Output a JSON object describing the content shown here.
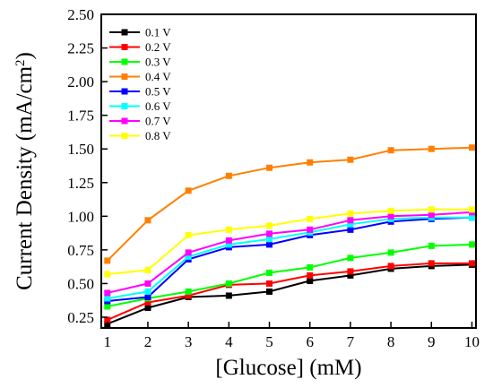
{
  "chart_data": {
    "type": "line",
    "title": "",
    "xlabel": "[Glucose] (mM)",
    "ylabel": {
      "prefix": "Current Density (mA/cm",
      "sup": "2",
      "suffix": ")"
    },
    "xlim": [
      0.85,
      10.1
    ],
    "ylim": [
      0.17,
      2.5
    ],
    "x": [
      1,
      2,
      3,
      4,
      5,
      6,
      7,
      8,
      9,
      10
    ],
    "x_ticks": [
      1,
      2,
      3,
      4,
      5,
      6,
      7,
      8,
      9,
      10
    ],
    "y_ticks": [
      "0.25",
      "0.50",
      "0.75",
      "1.00",
      "1.25",
      "1.50",
      "1.75",
      "2.00",
      "2.25",
      "2.50"
    ],
    "grid": false,
    "legend_position": "top-left",
    "series": [
      {
        "name": "0.1 V",
        "color": "#000000",
        "values": [
          0.2,
          0.32,
          0.4,
          0.41,
          0.44,
          0.52,
          0.56,
          0.61,
          0.63,
          0.64
        ]
      },
      {
        "name": "0.2 V",
        "color": "#ff0000",
        "values": [
          0.23,
          0.36,
          0.41,
          0.49,
          0.5,
          0.56,
          0.59,
          0.63,
          0.65,
          0.65
        ]
      },
      {
        "name": "0.3 V",
        "color": "#00ff00",
        "values": [
          0.33,
          0.39,
          0.44,
          0.5,
          0.58,
          0.62,
          0.69,
          0.73,
          0.78,
          0.79
        ]
      },
      {
        "name": "0.4 V",
        "color": "#ff8000",
        "values": [
          0.67,
          0.97,
          1.19,
          1.3,
          1.36,
          1.4,
          1.42,
          1.49,
          1.5,
          1.51
        ]
      },
      {
        "name": "0.5 V",
        "color": "#0000ff",
        "values": [
          0.37,
          0.4,
          0.68,
          0.77,
          0.79,
          0.86,
          0.9,
          0.96,
          0.98,
          0.99
        ]
      },
      {
        "name": "0.6 V",
        "color": "#00ffff",
        "values": [
          0.39,
          0.44,
          0.7,
          0.79,
          0.83,
          0.88,
          0.94,
          0.98,
          0.99,
          0.99
        ]
      },
      {
        "name": "0.7 V",
        "color": "#ff00ff",
        "values": [
          0.43,
          0.5,
          0.73,
          0.82,
          0.87,
          0.9,
          0.97,
          1.0,
          1.01,
          1.03
        ]
      },
      {
        "name": "0.8 V",
        "color": "#ffff00",
        "values": [
          0.57,
          0.6,
          0.86,
          0.9,
          0.93,
          0.98,
          1.02,
          1.04,
          1.05,
          1.05
        ]
      }
    ]
  }
}
